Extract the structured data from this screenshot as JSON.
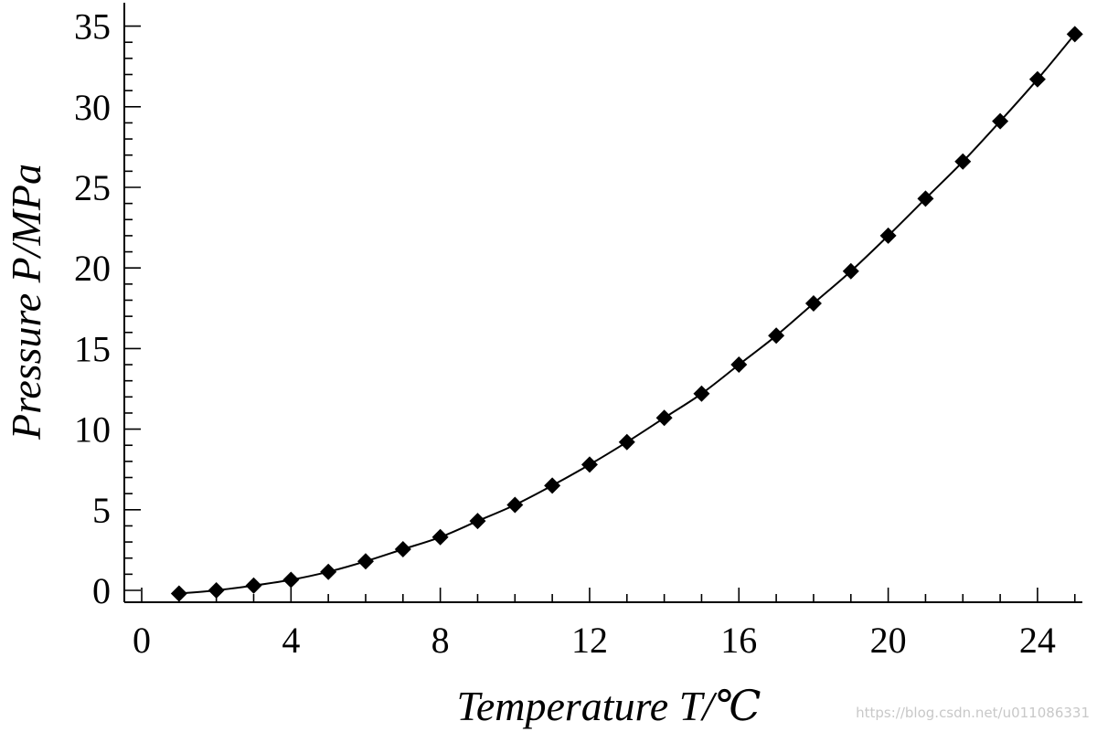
{
  "chart_data": {
    "type": "scatter",
    "title": "",
    "xlabel": "Temperature T/℃",
    "ylabel": "Pressure P/MPa",
    "xlim": [
      0,
      25.2
    ],
    "ylim": [
      -0.8,
      36.5
    ],
    "x_major_ticks": [
      0,
      4,
      8,
      12,
      16,
      20,
      24
    ],
    "x_tick_labels": [
      "0",
      "4",
      "8",
      "12",
      "16",
      "20",
      "24"
    ],
    "y_major_ticks": [
      0,
      5,
      10,
      15,
      20,
      25,
      30,
      35
    ],
    "y_tick_labels": [
      "0",
      "5",
      "10",
      "15",
      "20",
      "25",
      "30",
      "35"
    ],
    "grid": false,
    "legend": "none",
    "series": [
      {
        "marker": "diamond",
        "color": "#000000",
        "fit_line": true,
        "x": [
          1,
          2,
          3,
          4,
          5,
          6,
          7,
          8,
          9,
          10,
          11,
          12,
          13,
          14,
          15,
          16,
          17,
          18,
          19,
          20,
          21,
          22,
          23,
          24,
          25
        ],
        "y": [
          -0.2,
          0.0,
          0.3,
          0.65,
          1.15,
          1.8,
          2.55,
          3.3,
          4.3,
          5.3,
          6.5,
          7.8,
          9.2,
          10.7,
          12.2,
          14.0,
          15.8,
          17.8,
          19.8,
          22.0,
          24.3,
          26.6,
          29.1,
          31.7,
          34.5
        ]
      }
    ]
  },
  "watermark": "https://blog.csdn.net/u011086331"
}
